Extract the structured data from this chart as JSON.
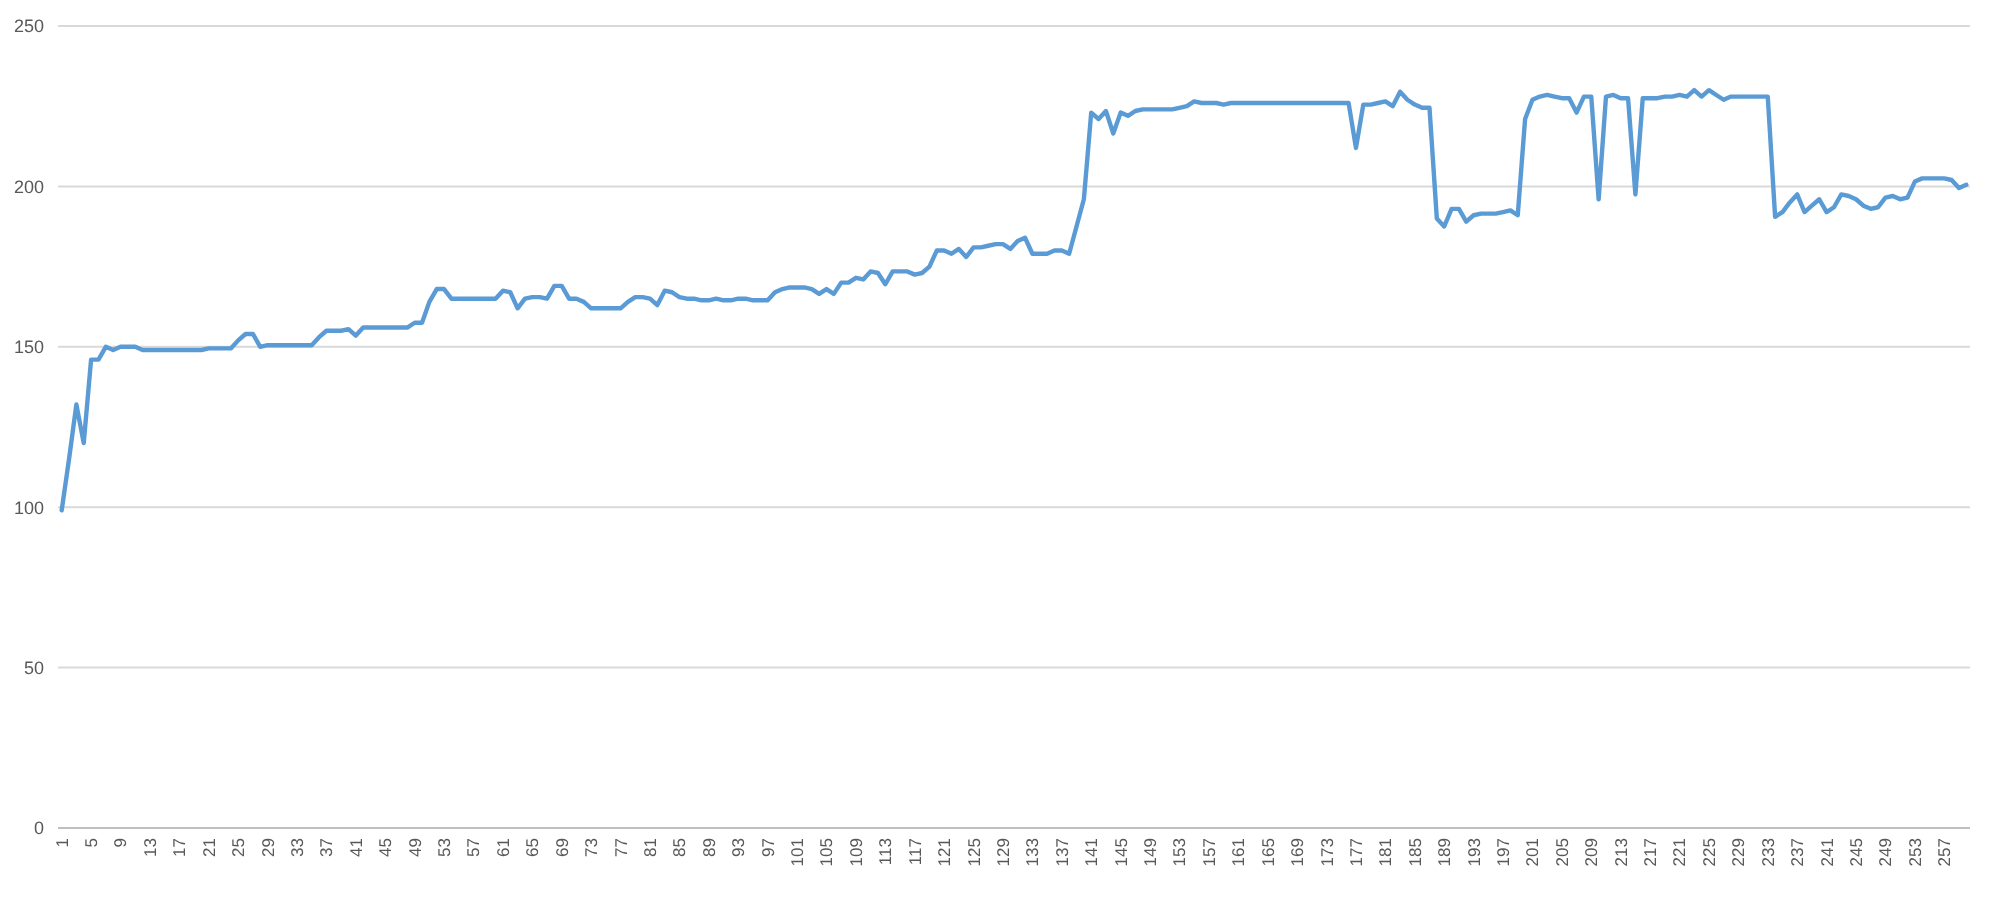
{
  "chart_data": {
    "type": "line",
    "categories": [
      "1",
      null,
      null,
      null,
      "5",
      null,
      null,
      null,
      "9",
      null,
      null,
      null,
      "13",
      null,
      null,
      null,
      "17",
      null,
      null,
      null,
      "21",
      null,
      null,
      null,
      "25",
      null,
      null,
      null,
      "29",
      null,
      null,
      null,
      "33",
      null,
      null,
      null,
      "37",
      null,
      null,
      null,
      "41",
      null,
      null,
      null,
      "45",
      null,
      null,
      null,
      "49",
      null,
      null,
      null,
      "53",
      null,
      null,
      null,
      "57",
      null,
      null,
      null,
      "61",
      null,
      null,
      null,
      "65",
      null,
      null,
      null,
      "69",
      null,
      null,
      null,
      "73",
      null,
      null,
      null,
      "77",
      null,
      null,
      null,
      "81",
      null,
      null,
      null,
      "85",
      null,
      null,
      null,
      "89",
      null,
      null,
      null,
      "93",
      null,
      null,
      null,
      "97",
      null,
      null,
      null,
      "101",
      null,
      null,
      null,
      "105",
      null,
      null,
      null,
      "109",
      null,
      null,
      null,
      "113",
      null,
      null,
      null,
      "117",
      null,
      null,
      null,
      "121",
      null,
      null,
      null,
      "125",
      null,
      null,
      null,
      "129",
      null,
      null,
      null,
      "133",
      null,
      null,
      null,
      "137",
      null,
      null,
      null,
      "141",
      null,
      null,
      null,
      "145",
      null,
      null,
      null,
      "149",
      null,
      null,
      null,
      "153",
      null,
      null,
      null,
      "157",
      null,
      null,
      null,
      "161",
      null,
      null,
      null,
      "165",
      null,
      null,
      null,
      "169",
      null,
      null,
      null,
      "173",
      null,
      null,
      null,
      "177",
      null,
      null,
      null,
      "181",
      null,
      null,
      null,
      "185",
      null,
      null,
      null,
      "189",
      null,
      null,
      null,
      "193",
      null,
      null,
      null,
      "197",
      null,
      null,
      null,
      "201",
      null,
      null,
      null,
      "205",
      null,
      null,
      null,
      "209",
      null,
      null,
      null,
      "213",
      null,
      null,
      null,
      "217",
      null,
      null,
      null,
      "221",
      null,
      null,
      null,
      "225",
      null,
      null,
      null,
      "229",
      null,
      null,
      null,
      "233",
      null,
      null,
      null,
      "237",
      null,
      null,
      null,
      "241",
      null,
      null,
      null,
      "245",
      null,
      null,
      null,
      "249",
      null,
      null,
      null,
      "253",
      null,
      null,
      null,
      "257",
      null,
      null,
      null
    ],
    "series": [
      {
        "color": "#5b9bd5",
        "values": [
          99,
          115,
          132,
          120,
          146,
          146,
          150,
          149,
          150,
          150,
          150,
          149,
          149,
          149,
          149,
          149,
          149,
          149,
          149,
          149,
          149.5,
          149.5,
          149.5,
          149.5,
          152,
          154,
          154,
          150,
          150.5,
          150.5,
          150.5,
          150.5,
          150.5,
          150.5,
          150.5,
          153,
          155,
          155,
          155,
          155.5,
          153.5,
          156,
          156,
          156,
          156,
          156,
          156,
          156,
          157.5,
          157.5,
          164,
          168,
          168,
          165,
          165,
          165,
          165,
          165,
          165,
          165,
          167.5,
          167,
          162,
          165,
          165.5,
          165.5,
          165,
          169,
          169,
          165,
          165,
          164,
          162,
          162,
          162,
          162,
          162,
          164,
          165.5,
          165.5,
          165,
          163,
          167.5,
          167,
          165.5,
          165,
          165,
          164.5,
          164.5,
          165,
          164.5,
          164.5,
          165,
          165,
          164.5,
          164.5,
          164.5,
          167,
          168,
          168.5,
          168.5,
          168.5,
          168,
          166.5,
          168,
          166.5,
          170,
          170,
          171.5,
          171,
          173.5,
          173,
          169.5,
          173.5,
          173.5,
          173.5,
          172.5,
          173,
          175,
          180,
          180,
          179,
          180.5,
          178,
          181,
          181,
          181.5,
          182,
          182,
          180.5,
          183,
          184,
          179,
          179,
          179,
          180,
          180,
          179,
          187.5,
          196,
          223,
          221,
          223.5,
          216.5,
          223,
          222,
          223.5,
          224,
          224,
          224,
          224,
          224,
          224.5,
          225,
          226.5,
          226,
          226,
          226,
          225.5,
          226,
          226,
          226,
          226,
          226,
          226,
          226,
          226,
          226,
          226,
          226,
          226,
          226,
          226,
          226,
          226,
          226,
          212,
          225.5,
          225.5,
          226,
          226.5,
          225,
          229.5,
          227,
          225.5,
          224.5,
          224.5,
          190,
          187.5,
          193,
          193,
          189,
          191,
          191.5,
          191.5,
          191.5,
          192,
          192.5,
          191,
          221,
          227,
          228,
          228.5,
          228,
          227.5,
          227.5,
          223,
          228,
          228,
          196,
          228,
          228.5,
          227.5,
          227.5,
          197.5,
          227.5,
          227.5,
          227.5,
          228,
          228,
          228.5,
          228,
          230,
          228,
          230,
          228.5,
          227,
          228,
          228,
          228,
          228,
          228,
          228,
          190.5,
          192,
          195,
          197.5,
          192,
          194,
          196,
          192,
          193.5,
          197.5,
          197,
          196,
          194,
          193,
          193.5,
          196.5,
          197,
          196,
          196.5,
          201.5,
          202.5,
          202.5,
          202.5,
          202.5,
          202,
          199.5,
          200.5
        ]
      }
    ],
    "ylim": [
      0,
      250
    ],
    "yticks": [
      0,
      50,
      100,
      150,
      200,
      250
    ],
    "grid": "y"
  }
}
